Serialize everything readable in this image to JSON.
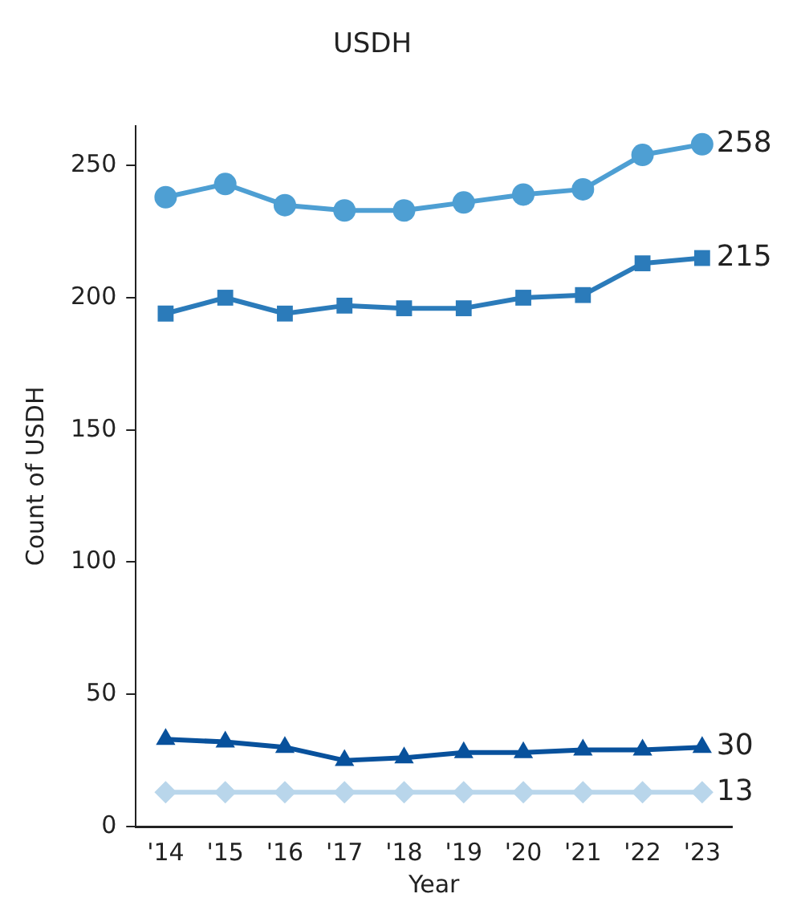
{
  "chart_data": {
    "type": "line",
    "title": "USDH",
    "xlabel": "Year",
    "ylabel": "Count of USDH",
    "categories": [
      "'14",
      "'15",
      "'16",
      "'17",
      "'18",
      "'19",
      "'20",
      "'21",
      "'22",
      "'23"
    ],
    "series": [
      {
        "color": "#4e9fd3",
        "marker": "circle",
        "values": [
          238,
          243,
          235,
          233,
          233,
          236,
          239,
          241,
          254,
          258
        ],
        "value_labels": [
          null,
          null,
          null,
          null,
          null,
          null,
          null,
          null,
          null,
          "258"
        ]
      },
      {
        "color": "#2b7bba",
        "marker": "square",
        "values": [
          194,
          200,
          194,
          197,
          196,
          196,
          200,
          201,
          213,
          215
        ],
        "value_labels": [
          null,
          null,
          null,
          null,
          null,
          null,
          null,
          null,
          null,
          "215"
        ]
      },
      {
        "color": "#08519c",
        "marker": "triangle",
        "values": [
          33,
          32,
          30,
          25,
          26,
          28,
          28,
          29,
          29,
          30
        ],
        "value_labels": [
          null,
          null,
          null,
          null,
          null,
          null,
          null,
          null,
          null,
          "30"
        ]
      },
      {
        "color": "#b9d6eb",
        "marker": "diamond",
        "values": [
          13,
          13,
          13,
          13,
          13,
          13,
          13,
          13,
          13,
          13
        ],
        "value_labels": [
          null,
          null,
          null,
          null,
          null,
          null,
          null,
          null,
          null,
          "13"
        ]
      }
    ],
    "ylim": [
      0,
      265
    ],
    "yticks": [
      0,
      50,
      100,
      150,
      200,
      250
    ],
    "grid": false,
    "legend": false
  }
}
